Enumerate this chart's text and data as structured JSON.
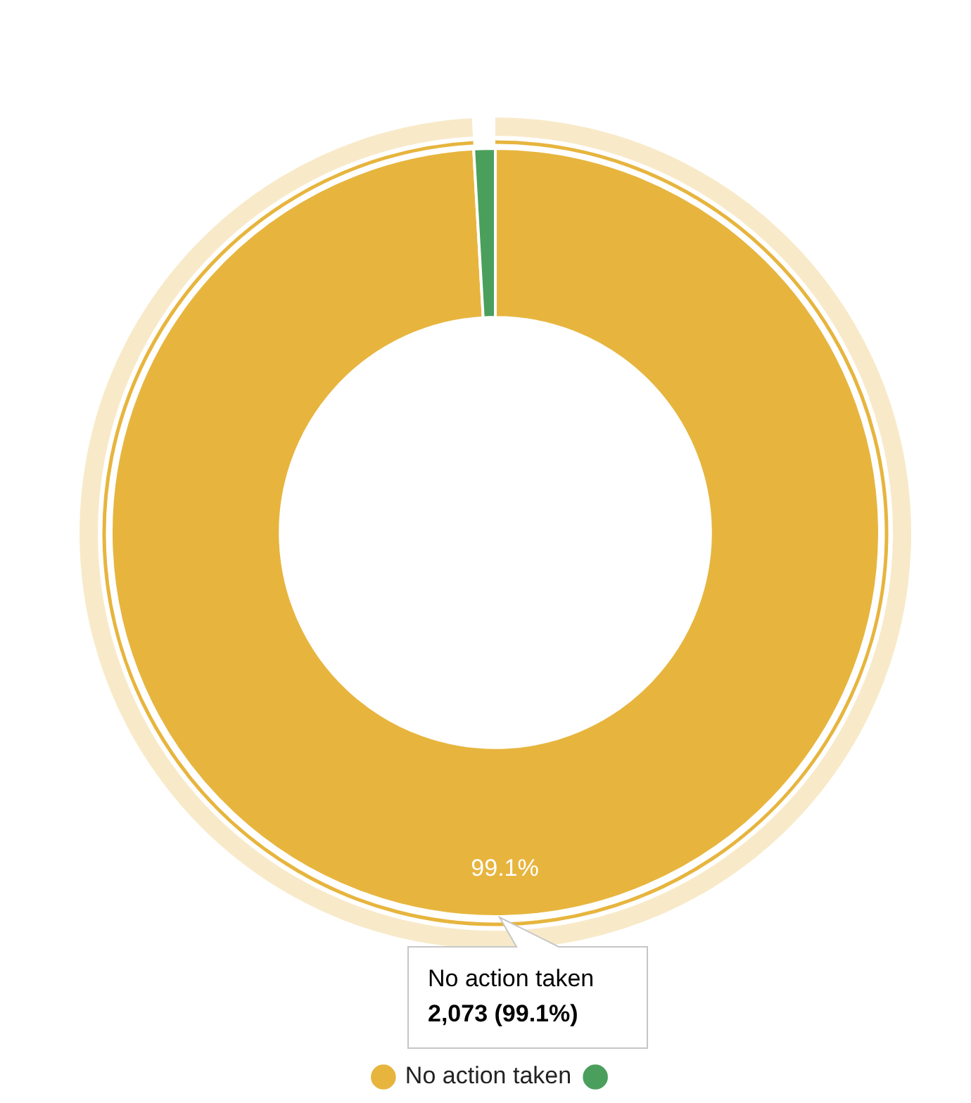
{
  "chart_data": {
    "type": "donut",
    "categories": [
      "No action taken",
      null
    ],
    "values": [
      99.1,
      0.9
    ],
    "colors": [
      "#e7b53e",
      "#4a9f5c"
    ],
    "value_labels": [
      "99.1%",
      null
    ],
    "legend": "bottom",
    "annotations": [
      "No action taken",
      "2,073 (99.1%)"
    ]
  }
}
